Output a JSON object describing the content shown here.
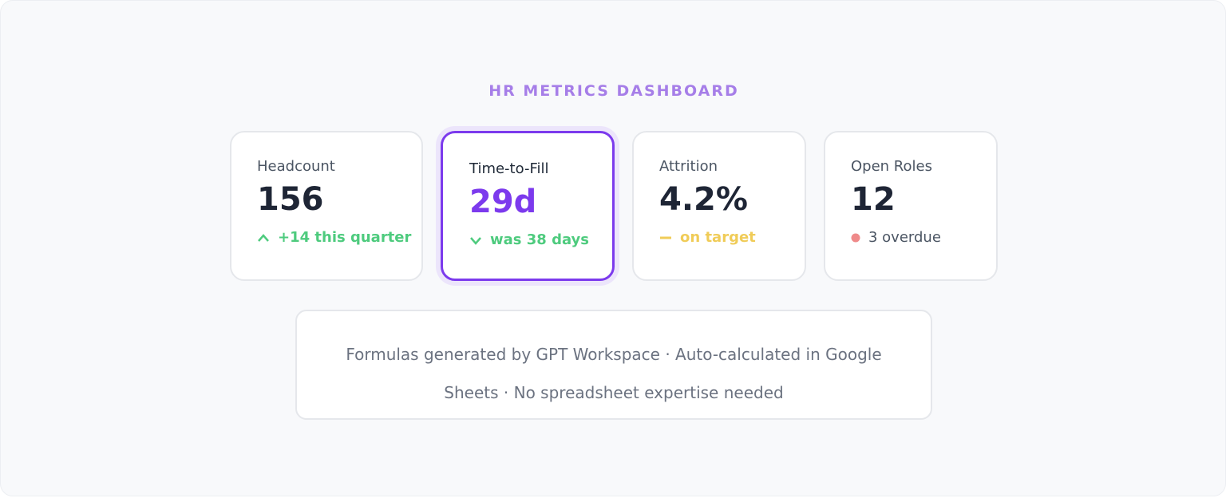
{
  "header": {
    "title": "HR METRICS DASHBOARD"
  },
  "cards": [
    {
      "label": "Headcount",
      "value": "156",
      "note": "+14 this quarter"
    },
    {
      "label": "Time-to-Fill",
      "value": "29d",
      "note": "was 38 days"
    },
    {
      "label": "Attrition",
      "value": "4.2%",
      "note": "on target"
    },
    {
      "label": "Open Roles",
      "value": "12",
      "note": "3 overdue"
    }
  ],
  "footer": {
    "text": "Formulas generated by GPT Workspace · Auto-calculated in Google Sheets · No spreadsheet expertise needed"
  }
}
